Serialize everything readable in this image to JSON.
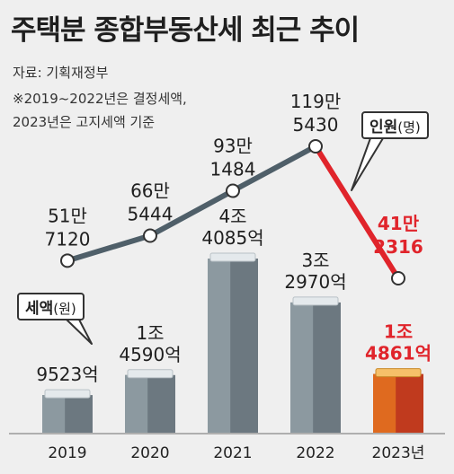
{
  "title": "주택분 종합부동산세 최근 추이",
  "source": "자료: 기획재정부",
  "note_line1": "※2019~2022년은 결정세액,",
  "note_line2": "2023년은 고지세액 기준",
  "legend_people": {
    "label": "인원",
    "unit": "(명)"
  },
  "legend_tax": {
    "label": "세액",
    "unit": "(원)"
  },
  "chart_data": {
    "type": "bar+line",
    "categories": [
      "2019",
      "2020",
      "2021",
      "2022",
      "2023년"
    ],
    "series": [
      {
        "name": "세액(원)",
        "type": "bar",
        "values": [
          952300000000,
          1459000000000,
          4408500000000,
          3297000000000,
          1486100000000
        ],
        "labels": [
          [
            "9523억"
          ],
          [
            "1조",
            "4590억"
          ],
          [
            "4조",
            "4085억"
          ],
          [
            "3조",
            "2970억"
          ],
          [
            "1조",
            "4861억"
          ]
        ]
      },
      {
        "name": "인원(명)",
        "type": "line",
        "values": [
          517120,
          665444,
          931484,
          1195430,
          412316
        ],
        "labels": [
          [
            "51만",
            "7120"
          ],
          [
            "66만",
            "5444"
          ],
          [
            "93만",
            "1484"
          ],
          [
            "119만",
            "5430"
          ],
          [
            "41만",
            "2316"
          ]
        ]
      }
    ],
    "colors": {
      "bar": "#6c7880",
      "bar_highlight": "#c03a1e",
      "line": "#4f5f69",
      "line_highlight": "#e0242b",
      "highlight_text": "#e0242b"
    }
  }
}
